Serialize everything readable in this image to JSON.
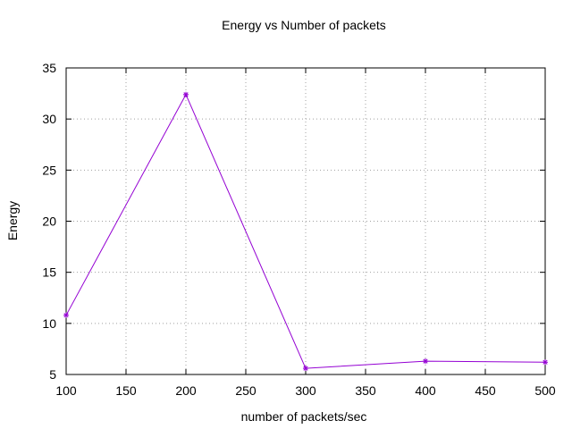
{
  "chart_data": {
    "type": "line",
    "title": "Energy vs Number of packets",
    "xlabel": "number of packets/sec",
    "ylabel": "Energy",
    "xlim": [
      100,
      500
    ],
    "ylim": [
      5,
      35
    ],
    "x_ticks": [
      100,
      150,
      200,
      250,
      300,
      350,
      400,
      450,
      500
    ],
    "y_ticks": [
      5,
      10,
      15,
      20,
      25,
      30,
      35
    ],
    "x_tick_labels": [
      "100",
      "150",
      "200",
      "250",
      "300",
      "350",
      "400",
      "450",
      "500"
    ],
    "y_tick_labels": [
      "5",
      "10",
      "15",
      "20",
      "25",
      "30",
      "35"
    ],
    "grid": true,
    "legend": "none",
    "series": [
      {
        "color": "#9400d3",
        "marker": "star",
        "x": [
          100,
          200,
          300,
          400,
          500
        ],
        "y": [
          10.8,
          32.4,
          5.6,
          6.3,
          6.2
        ]
      }
    ]
  }
}
